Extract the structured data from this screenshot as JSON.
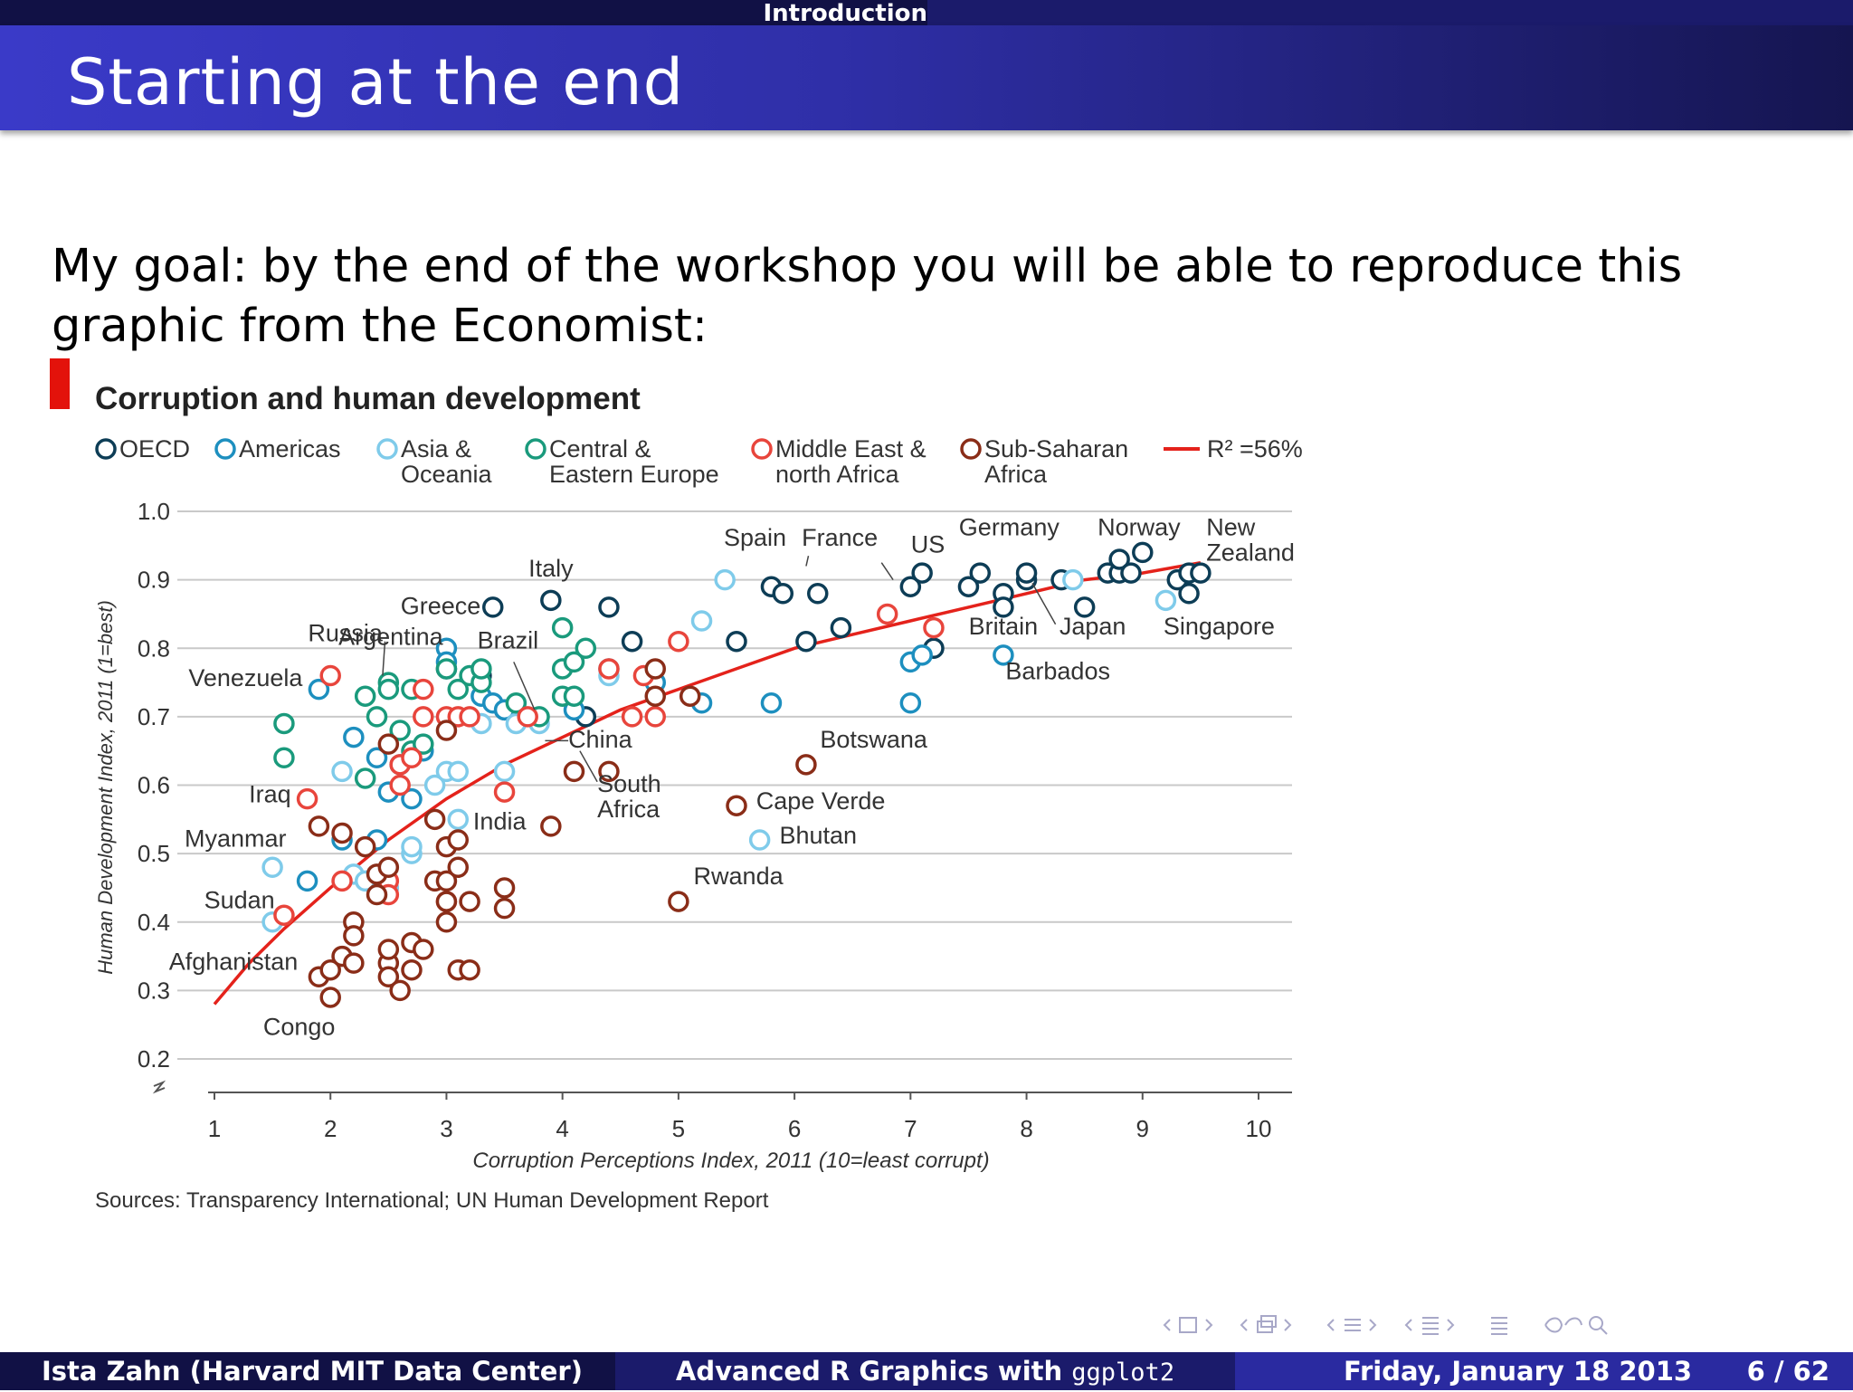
{
  "header": {
    "section": "Introduction",
    "title": "Starting at the end"
  },
  "intro": "My goal: by the end of the workshop you will be able to reproduce this graphic from the Economist:",
  "chart_data": {
    "type": "scatter",
    "title": "Corruption and human development",
    "xlabel": "Corruption Perceptions Index, 2011 (10=least corrupt)",
    "ylabel": "Human Development Index, 2011 (1=best)",
    "source": "Sources: Transparency International; UN Human Development Report",
    "xlim": [
      1,
      10
    ],
    "ylim": [
      0.2,
      1.0
    ],
    "x_ticks": [
      1,
      2,
      3,
      4,
      5,
      6,
      7,
      8,
      9,
      10
    ],
    "y_ticks": [
      1.0,
      0.9,
      0.8,
      0.7,
      0.6,
      0.5,
      0.4,
      0.3,
      0.2
    ],
    "y_tick_labels": [
      "1.0",
      "0.9",
      "0.8",
      "0.7",
      "0.6",
      "0.5",
      "0.4",
      "0.3",
      "0.2"
    ],
    "grid": true,
    "legend_position": "top",
    "series": [
      {
        "name": "OECD",
        "color": "#0d3d56",
        "points": [
          [
            3.4,
            0.86
          ],
          [
            3.9,
            0.87
          ],
          [
            4.4,
            0.86
          ],
          [
            4.6,
            0.81
          ],
          [
            5.5,
            0.81
          ],
          [
            5.8,
            0.89
          ],
          [
            5.9,
            0.88
          ],
          [
            6.1,
            0.81
          ],
          [
            6.2,
            0.88
          ],
          [
            6.4,
            0.83
          ],
          [
            7.0,
            0.89
          ],
          [
            7.1,
            0.91
          ],
          [
            7.2,
            0.8
          ],
          [
            7.5,
            0.89
          ],
          [
            7.6,
            0.91
          ],
          [
            7.8,
            0.88
          ],
          [
            7.8,
            0.86
          ],
          [
            8.0,
            0.9
          ],
          [
            8.0,
            0.91
          ],
          [
            8.3,
            0.9
          ],
          [
            8.5,
            0.86
          ],
          [
            8.7,
            0.91
          ],
          [
            8.8,
            0.91
          ],
          [
            8.8,
            0.93
          ],
          [
            8.9,
            0.91
          ],
          [
            9.0,
            0.94
          ],
          [
            9.3,
            0.9
          ],
          [
            9.4,
            0.88
          ],
          [
            9.4,
            0.91
          ],
          [
            9.5,
            0.91
          ],
          [
            3.0,
            0.77
          ],
          [
            3.3,
            0.76
          ],
          [
            3.5,
            0.71
          ],
          [
            4.2,
            0.7
          ]
        ]
      },
      {
        "name": "Americas",
        "color": "#1d8fbf",
        "points": [
          [
            1.9,
            0.74
          ],
          [
            1.8,
            0.46
          ],
          [
            2.2,
            0.67
          ],
          [
            2.4,
            0.64
          ],
          [
            2.5,
            0.59
          ],
          [
            2.6,
            0.63
          ],
          [
            2.7,
            0.58
          ],
          [
            2.8,
            0.65
          ],
          [
            3.0,
            0.8
          ],
          [
            3.0,
            0.78
          ],
          [
            3.3,
            0.73
          ],
          [
            3.4,
            0.72
          ],
          [
            3.5,
            0.71
          ],
          [
            4.1,
            0.71
          ],
          [
            4.4,
            0.77
          ],
          [
            4.8,
            0.75
          ],
          [
            5.2,
            0.72
          ],
          [
            5.8,
            0.72
          ],
          [
            7.0,
            0.72
          ],
          [
            7.0,
            0.78
          ],
          [
            7.1,
            0.79
          ],
          [
            7.8,
            0.79
          ],
          [
            2.1,
            0.52
          ],
          [
            2.4,
            0.52
          ]
        ]
      },
      {
        "name": "Asia & Oceania",
        "color": "#7fcbea",
        "points": [
          [
            1.5,
            0.48
          ],
          [
            1.5,
            0.4
          ],
          [
            2.1,
            0.62
          ],
          [
            2.2,
            0.47
          ],
          [
            2.3,
            0.46
          ],
          [
            2.5,
            0.45
          ],
          [
            2.7,
            0.5
          ],
          [
            2.7,
            0.51
          ],
          [
            2.9,
            0.6
          ],
          [
            3.0,
            0.62
          ],
          [
            3.1,
            0.62
          ],
          [
            3.1,
            0.55
          ],
          [
            3.3,
            0.69
          ],
          [
            3.5,
            0.62
          ],
          [
            3.6,
            0.69
          ],
          [
            3.8,
            0.69
          ],
          [
            4.4,
            0.76
          ],
          [
            5.2,
            0.84
          ],
          [
            5.4,
            0.9
          ],
          [
            5.7,
            0.52
          ],
          [
            9.2,
            0.87
          ],
          [
            8.4,
            0.9
          ]
        ]
      },
      {
        "name": "Central & Eastern Europe",
        "color": "#1a9a7c",
        "points": [
          [
            1.6,
            0.69
          ],
          [
            1.6,
            0.64
          ],
          [
            2.3,
            0.61
          ],
          [
            2.3,
            0.73
          ],
          [
            2.4,
            0.7
          ],
          [
            2.5,
            0.75
          ],
          [
            2.5,
            0.74
          ],
          [
            2.6,
            0.68
          ],
          [
            2.7,
            0.65
          ],
          [
            2.7,
            0.74
          ],
          [
            2.8,
            0.66
          ],
          [
            3.0,
            0.77
          ],
          [
            3.1,
            0.74
          ],
          [
            3.2,
            0.76
          ],
          [
            3.3,
            0.75
          ],
          [
            3.3,
            0.77
          ],
          [
            3.6,
            0.72
          ],
          [
            3.8,
            0.7
          ],
          [
            4.0,
            0.73
          ],
          [
            4.0,
            0.77
          ],
          [
            4.1,
            0.78
          ],
          [
            4.1,
            0.73
          ],
          [
            4.2,
            0.8
          ],
          [
            4.0,
            0.83
          ]
        ]
      },
      {
        "name": "Middle East & north Africa",
        "color": "#e8453c",
        "points": [
          [
            1.8,
            0.58
          ],
          [
            1.6,
            0.41
          ],
          [
            2.0,
            0.76
          ],
          [
            2.1,
            0.46
          ],
          [
            2.5,
            0.46
          ],
          [
            2.6,
            0.6
          ],
          [
            2.6,
            0.63
          ],
          [
            2.7,
            0.64
          ],
          [
            2.8,
            0.74
          ],
          [
            2.8,
            0.7
          ],
          [
            3.0,
            0.7
          ],
          [
            3.1,
            0.7
          ],
          [
            3.2,
            0.7
          ],
          [
            3.5,
            0.59
          ],
          [
            3.7,
            0.7
          ],
          [
            4.4,
            0.77
          ],
          [
            4.6,
            0.7
          ],
          [
            4.7,
            0.76
          ],
          [
            4.8,
            0.7
          ],
          [
            5.0,
            0.81
          ],
          [
            6.8,
            0.85
          ],
          [
            7.2,
            0.83
          ],
          [
            3.0,
            0.43
          ],
          [
            2.5,
            0.44
          ]
        ]
      },
      {
        "name": "Sub-Saharan Africa",
        "color": "#8a2d18",
        "points": [
          [
            1.9,
            0.54
          ],
          [
            1.9,
            0.32
          ],
          [
            2.0,
            0.29
          ],
          [
            2.0,
            0.33
          ],
          [
            2.1,
            0.35
          ],
          [
            2.1,
            0.53
          ],
          [
            2.2,
            0.4
          ],
          [
            2.2,
            0.38
          ],
          [
            2.2,
            0.34
          ],
          [
            2.3,
            0.51
          ],
          [
            2.4,
            0.44
          ],
          [
            2.4,
            0.47
          ],
          [
            2.5,
            0.34
          ],
          [
            2.5,
            0.32
          ],
          [
            2.5,
            0.36
          ],
          [
            2.5,
            0.48
          ],
          [
            2.5,
            0.66
          ],
          [
            2.6,
            0.3
          ],
          [
            2.7,
            0.37
          ],
          [
            2.7,
            0.33
          ],
          [
            2.8,
            0.36
          ],
          [
            2.9,
            0.46
          ],
          [
            2.9,
            0.55
          ],
          [
            3.0,
            0.51
          ],
          [
            3.0,
            0.46
          ],
          [
            3.0,
            0.43
          ],
          [
            3.0,
            0.4
          ],
          [
            3.0,
            0.68
          ],
          [
            3.1,
            0.52
          ],
          [
            3.1,
            0.48
          ],
          [
            3.1,
            0.33
          ],
          [
            3.2,
            0.33
          ],
          [
            3.2,
            0.43
          ],
          [
            3.5,
            0.45
          ],
          [
            3.5,
            0.42
          ],
          [
            3.9,
            0.54
          ],
          [
            4.1,
            0.62
          ],
          [
            4.4,
            0.62
          ],
          [
            4.8,
            0.73
          ],
          [
            4.8,
            0.77
          ],
          [
            5.1,
            0.73
          ],
          [
            5.5,
            0.57
          ],
          [
            5.0,
            0.43
          ],
          [
            6.1,
            0.63
          ]
        ]
      }
    ],
    "trend": {
      "name": "R² =56%",
      "color": "#e4221b",
      "x": [
        1.0,
        1.3,
        1.6,
        2.0,
        2.5,
        3.0,
        3.5,
        4.0,
        4.5,
        5.0,
        5.5,
        6.0,
        6.5,
        7.0,
        7.5,
        8.0,
        8.5,
        9.0,
        9.5
      ],
      "y": [
        0.28,
        0.34,
        0.39,
        0.45,
        0.52,
        0.58,
        0.63,
        0.67,
        0.71,
        0.74,
        0.77,
        0.8,
        0.82,
        0.84,
        0.86,
        0.88,
        0.9,
        0.91,
        0.925
      ]
    },
    "legend": [
      {
        "lines": [
          "OECD"
        ],
        "color": "#0d3d56"
      },
      {
        "lines": [
          "Americas"
        ],
        "color": "#1d8fbf"
      },
      {
        "lines": [
          "Asia &",
          "Oceania"
        ],
        "color": "#7fcbea"
      },
      {
        "lines": [
          "Central &",
          "Eastern Europe"
        ],
        "color": "#1a9a7c"
      },
      {
        "lines": [
          "Middle East &",
          "north Africa"
        ],
        "color": "#e8453c"
      },
      {
        "lines": [
          "Sub-Saharan",
          "Africa"
        ],
        "color": "#8a2d18"
      }
    ],
    "annotations": [
      {
        "lines": [
          "Russia"
        ],
        "x": 2.45,
        "y": 0.81,
        "anchor": "end",
        "leader": [
          2.47,
          0.81,
          2.45,
          0.76
        ]
      },
      {
        "lines": [
          "Venezuela"
        ],
        "x": 1.76,
        "y": 0.745,
        "anchor": "end"
      },
      {
        "lines": [
          "Iraq"
        ],
        "x": 1.66,
        "y": 0.575,
        "anchor": "end"
      },
      {
        "lines": [
          "Myanmar"
        ],
        "x": 1.62,
        "y": 0.51,
        "anchor": "end"
      },
      {
        "lines": [
          "Sudan"
        ],
        "x": 1.52,
        "y": 0.42,
        "anchor": "end"
      },
      {
        "lines": [
          "Afghanistan"
        ],
        "x": 1.72,
        "y": 0.33,
        "anchor": "end"
      },
      {
        "lines": [
          "Congo"
        ],
        "x": 1.42,
        "y": 0.235,
        "anchor": "start"
      },
      {
        "lines": [
          "Argentina"
        ],
        "x": 2.52,
        "y": 0.805,
        "anchor": "middle"
      },
      {
        "lines": [
          "Greece"
        ],
        "x": 2.95,
        "y": 0.85,
        "anchor": "middle"
      },
      {
        "lines": [
          "Italy"
        ],
        "x": 3.9,
        "y": 0.905,
        "anchor": "middle"
      },
      {
        "lines": [
          "Brazil"
        ],
        "x": 3.53,
        "y": 0.8,
        "anchor": "middle",
        "leader": [
          3.58,
          0.78,
          3.76,
          0.71
        ]
      },
      {
        "lines": [
          "China"
        ],
        "x": 4.05,
        "y": 0.655,
        "anchor": "start",
        "leader": [
          4.05,
          0.665,
          3.85,
          0.665
        ]
      },
      {
        "lines": [
          "South",
          "Africa"
        ],
        "x": 4.3,
        "y": 0.59,
        "anchor": "start",
        "leader": [
          4.3,
          0.605,
          4.15,
          0.65
        ]
      },
      {
        "lines": [
          "India"
        ],
        "x": 3.23,
        "y": 0.535,
        "anchor": "start"
      },
      {
        "lines": [
          "Botswana"
        ],
        "x": 6.22,
        "y": 0.655,
        "anchor": "start"
      },
      {
        "lines": [
          "Cape Verde"
        ],
        "x": 5.67,
        "y": 0.565,
        "anchor": "start"
      },
      {
        "lines": [
          "Bhutan"
        ],
        "x": 5.87,
        "y": 0.515,
        "anchor": "start"
      },
      {
        "lines": [
          "Rwanda"
        ],
        "x": 5.13,
        "y": 0.455,
        "anchor": "start"
      },
      {
        "lines": [
          "Spain"
        ],
        "x": 5.66,
        "y": 0.95,
        "anchor": "middle"
      },
      {
        "lines": [
          "France"
        ],
        "x": 6.39,
        "y": 0.95,
        "anchor": "middle",
        "leader": [
          6.12,
          0.935,
          6.1,
          0.92
        ]
      },
      {
        "lines": [
          "US"
        ],
        "x": 7.15,
        "y": 0.94,
        "anchor": "middle",
        "leader": [
          6.75,
          0.925,
          6.85,
          0.9
        ]
      },
      {
        "lines": [
          "Germany"
        ],
        "x": 7.85,
        "y": 0.965,
        "anchor": "middle"
      },
      {
        "lines": [
          "Norway"
        ],
        "x": 8.97,
        "y": 0.965,
        "anchor": "middle"
      },
      {
        "lines": [
          "New",
          "Zealand"
        ],
        "x": 9.55,
        "y": 0.965,
        "anchor": "start"
      },
      {
        "lines": [
          "Britain"
        ],
        "x": 7.8,
        "y": 0.82,
        "anchor": "middle"
      },
      {
        "lines": [
          "Japan"
        ],
        "x": 8.57,
        "y": 0.82,
        "anchor": "middle",
        "leader": [
          8.25,
          0.835,
          8.05,
          0.895
        ]
      },
      {
        "lines": [
          "Singapore"
        ],
        "x": 9.66,
        "y": 0.82,
        "anchor": "middle"
      },
      {
        "lines": [
          "Barbados"
        ],
        "x": 8.27,
        "y": 0.755,
        "anchor": "middle"
      }
    ]
  },
  "footer": {
    "author": "Ista Zahn (Harvard MIT Data Center)",
    "talk_prefix": "Advanced R Graphics with ",
    "talk_package": "ggplot2",
    "date": "Friday, January 18 2013",
    "page": "6 / 62"
  }
}
